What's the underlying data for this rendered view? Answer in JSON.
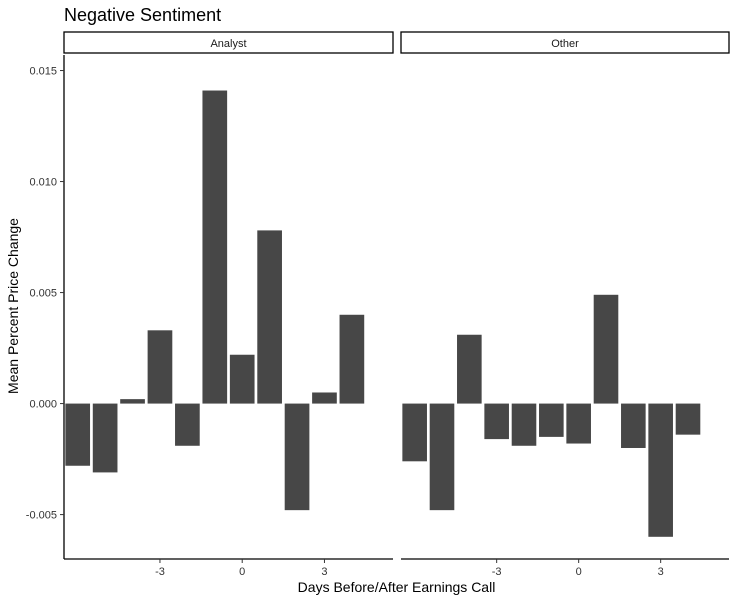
{
  "chart_data": {
    "type": "bar",
    "title": "Negative Sentiment",
    "xlabel": "Days Before/After Earnings Call",
    "ylabel": "Mean Percent Price Change",
    "ylim": [
      -0.007,
      0.0157
    ],
    "xlim": [
      -6.5,
      5.5
    ],
    "y_ticks": [
      -0.005,
      0.0,
      0.005,
      0.01,
      0.015
    ],
    "y_tick_labels": [
      "-0.005",
      "0.000",
      "0.005",
      "0.010",
      "0.015"
    ],
    "x_ticks": [
      -3,
      0,
      3
    ],
    "x_tick_labels": [
      "-3",
      "0",
      "3"
    ],
    "grid": false,
    "bar_color": "#474747",
    "x": [
      -6,
      -5,
      -4,
      -3,
      -2,
      -1,
      0,
      1,
      2,
      3,
      4,
      5
    ],
    "panels": [
      {
        "name": "Analyst",
        "values": [
          -0.0028,
          -0.0031,
          0.0002,
          0.0033,
          -0.0019,
          0.0141,
          0.0022,
          0.0078,
          -0.0048,
          0.0005,
          0.004,
          null
        ]
      },
      {
        "name": "Other",
        "values": [
          -0.0026,
          -0.0048,
          0.0031,
          -0.0016,
          -0.0019,
          -0.0015,
          -0.0018,
          0.0049,
          -0.002,
          -0.006,
          -0.0014,
          null
        ]
      }
    ]
  }
}
